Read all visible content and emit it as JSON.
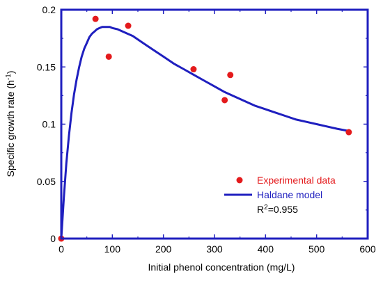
{
  "chart_data": {
    "type": "scatter",
    "title": "",
    "xlabel": "Initial phenol concentration (mg/L)",
    "ylabel_main": "Specific growth rate (h",
    "ylabel_sup": "-1",
    "ylabel_close": ")",
    "xlim": [
      0,
      600
    ],
    "ylim": [
      0,
      0.2
    ],
    "x_ticks": [
      "0",
      "100",
      "200",
      "300",
      "400",
      "500",
      "600"
    ],
    "y_ticks": [
      "0",
      "0.05",
      "0.1",
      "0.15",
      "0.2"
    ],
    "grid": false,
    "legend_position": "bottom-right",
    "series": [
      {
        "name": "Experimental data",
        "kind": "points",
        "color": "#e41a1c",
        "x": [
          0,
          67,
          93,
          131,
          259,
          320,
          331,
          563
        ],
        "y": [
          0.0,
          0.192,
          0.159,
          0.186,
          0.148,
          0.121,
          0.143,
          0.093
        ]
      },
      {
        "name": "Haldane model",
        "kind": "line",
        "color": "#1f1fbf",
        "x": [
          0,
          5,
          10,
          15,
          20,
          25,
          30,
          35,
          40,
          45,
          50,
          55,
          60,
          65,
          70,
          75,
          80,
          85,
          90,
          95,
          100,
          110,
          120,
          130,
          140,
          150,
          160,
          180,
          200,
          220,
          240,
          260,
          280,
          300,
          320,
          340,
          360,
          380,
          400,
          420,
          440,
          460,
          480,
          500,
          520,
          540,
          563
        ],
        "y": [
          0.0,
          0.036,
          0.066,
          0.09,
          0.11,
          0.126,
          0.139,
          0.15,
          0.159,
          0.166,
          0.171,
          0.176,
          0.179,
          0.181,
          0.183,
          0.184,
          0.185,
          0.185,
          0.185,
          0.185,
          0.184,
          0.183,
          0.181,
          0.179,
          0.177,
          0.174,
          0.171,
          0.165,
          0.159,
          0.153,
          0.148,
          0.143,
          0.138,
          0.133,
          0.128,
          0.124,
          0.12,
          0.116,
          0.113,
          0.11,
          0.107,
          0.104,
          0.102,
          0.1,
          0.098,
          0.096,
          0.094
        ]
      }
    ],
    "annotation_main": "R",
    "annotation_sup": "2",
    "annotation_rest": "=0.955"
  }
}
